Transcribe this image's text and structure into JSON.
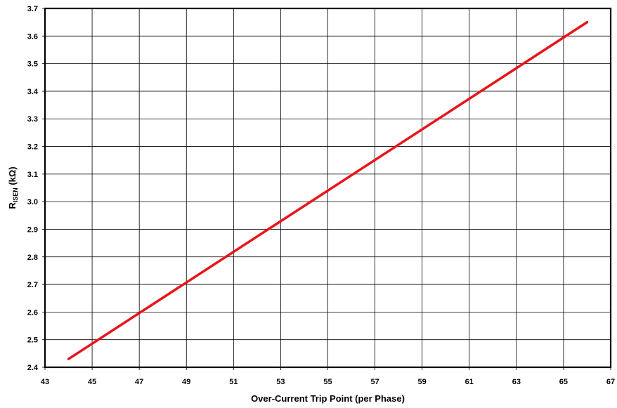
{
  "chart_data": {
    "type": "line",
    "title": "",
    "xlabel": "Over-Current Trip Point (per Phase)",
    "ylabel": {
      "base": "R",
      "sub": "ISEN",
      "suffix": " (kΩ)"
    },
    "xlim": [
      43,
      67
    ],
    "ylim": [
      2.4,
      3.7
    ],
    "x_ticks": [
      "43",
      "45",
      "47",
      "49",
      "51",
      "53",
      "55",
      "57",
      "59",
      "61",
      "63",
      "65",
      "67"
    ],
    "y_ticks": [
      "2.4",
      "2.5",
      "2.6",
      "2.7",
      "2.8",
      "2.9",
      "3.0",
      "3.1",
      "3.2",
      "3.3",
      "3.4",
      "3.5",
      "3.6",
      "3.7"
    ],
    "grid": true,
    "series": [
      {
        "color": "#e8141b",
        "x": [
          44,
          66
        ],
        "y": [
          2.43,
          3.65
        ]
      }
    ]
  }
}
